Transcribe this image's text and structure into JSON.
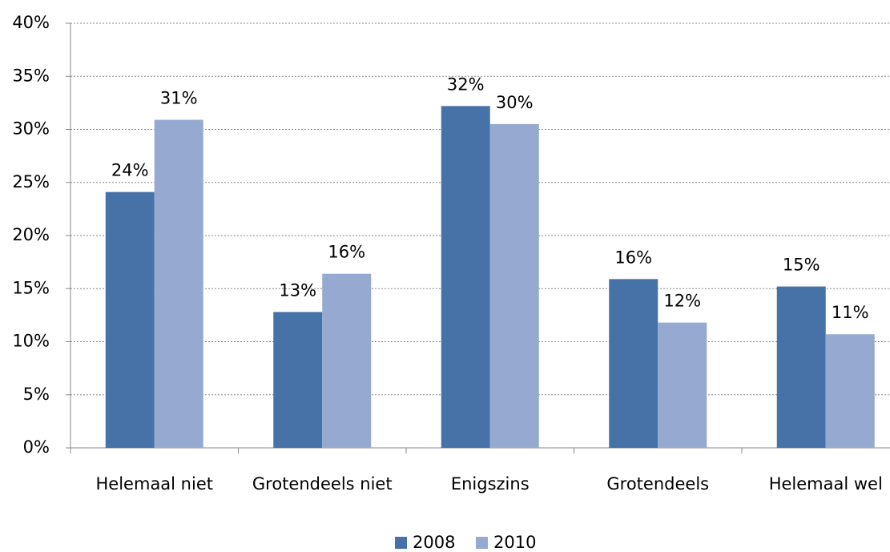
{
  "chart_data": {
    "type": "bar",
    "categories": [
      "Helemaal niet",
      "Grotendeels niet",
      "Enigszins",
      "Grotendeels",
      "Helemaal wel"
    ],
    "series": [
      {
        "name": "2008",
        "color": "#4672a8",
        "values": [
          24.1,
          12.8,
          32.2,
          15.9,
          15.2
        ],
        "value_labels": [
          "24%",
          "13%",
          "32%",
          "16%",
          "15%"
        ]
      },
      {
        "name": "2010",
        "color": "#95a9d1",
        "values": [
          30.9,
          16.4,
          30.5,
          11.8,
          10.7
        ],
        "value_labels": [
          "31%",
          "16%",
          "30%",
          "12%",
          "11%"
        ]
      }
    ],
    "ylim": [
      0,
      40
    ],
    "yticks": [
      {
        "value": 0,
        "label": "0%"
      },
      {
        "value": 5,
        "label": "5%"
      },
      {
        "value": 10,
        "label": "10%"
      },
      {
        "value": 15,
        "label": "15%"
      },
      {
        "value": 20,
        "label": "20%"
      },
      {
        "value": 25,
        "label": "25%"
      },
      {
        "value": 30,
        "label": "30%"
      },
      {
        "value": 35,
        "label": "35%"
      },
      {
        "value": 40,
        "label": "40%"
      }
    ],
    "grid": true,
    "legend": "bottom"
  }
}
